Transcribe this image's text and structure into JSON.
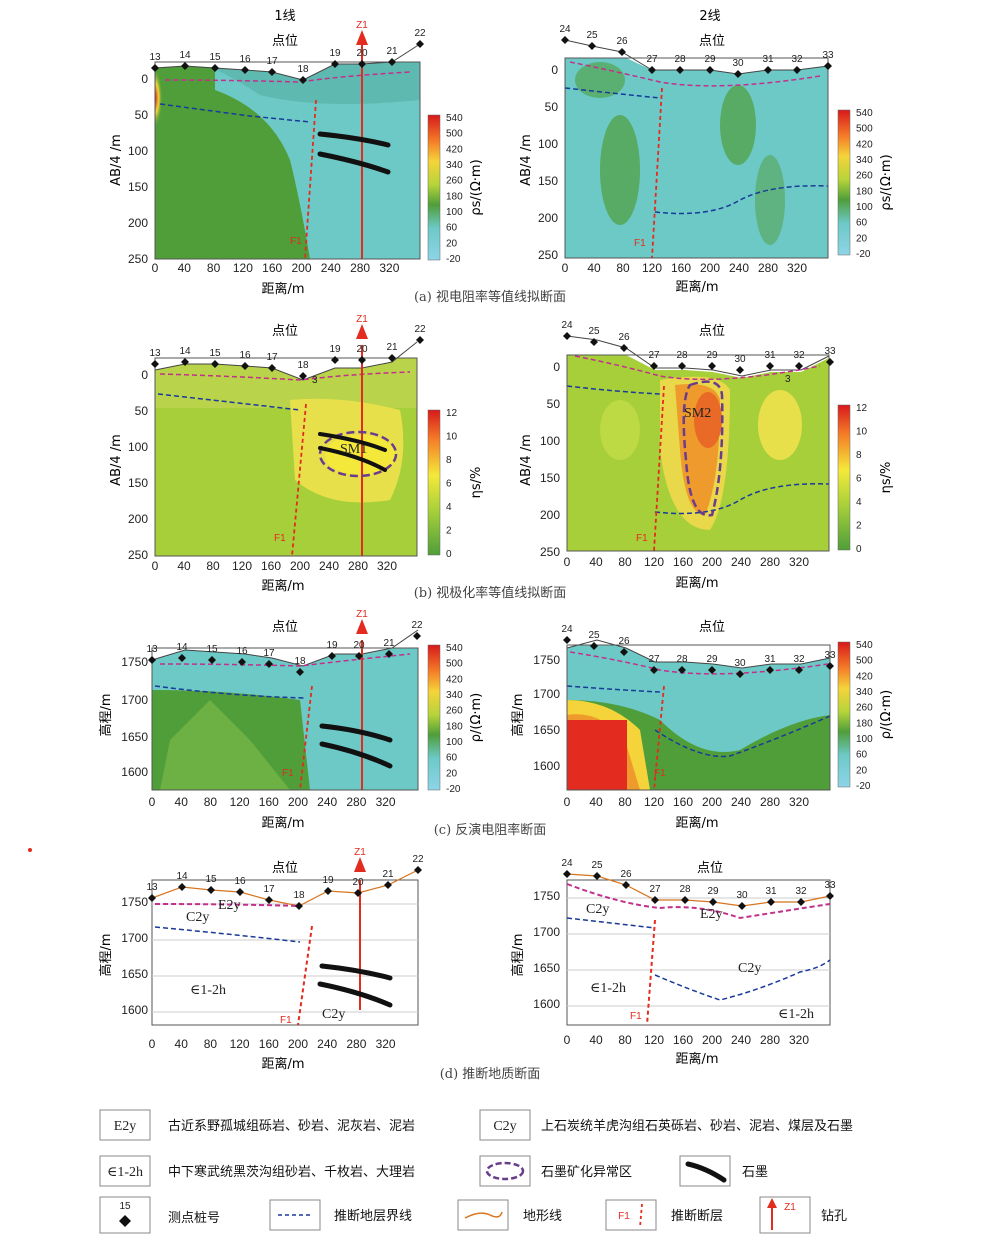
{
  "line_titles": [
    "1线",
    "2线"
  ],
  "point_label": "点位",
  "distance_label": "距离/m",
  "depth_label": "AB/4 /m",
  "elev_label": "高程/m",
  "z1": "Z1",
  "f1": "F1",
  "x_ticks": [
    "0",
    "40",
    "80",
    "120",
    "160",
    "200",
    "240",
    "280",
    "320"
  ],
  "line1_stations": [
    "13",
    "14",
    "15",
    "16",
    "17",
    "18",
    "19",
    "20",
    "21",
    "22"
  ],
  "line2_stations": [
    "24",
    "25",
    "26",
    "27",
    "28",
    "29",
    "30",
    "31",
    "32",
    "33"
  ],
  "depth_ticks": [
    "0",
    "50",
    "100",
    "150",
    "200",
    "250"
  ],
  "elev_ticks": [
    "1750",
    "1700",
    "1650",
    "1600"
  ],
  "rho_colorbar": {
    "label": "ρs/(Ω·m)",
    "ticks": [
      "540",
      "500",
      "420",
      "340",
      "260",
      "180",
      "100",
      "60",
      "20",
      "-20"
    ]
  },
  "eta_colorbar": {
    "label": "ηs/%",
    "ticks": [
      "12",
      "10",
      "8",
      "6",
      "4",
      "2",
      "0"
    ]
  },
  "rho_inv_colorbar": {
    "label": "ρ/(Ω·m)",
    "ticks": [
      "540",
      "500",
      "420",
      "340",
      "260",
      "180",
      "100",
      "60",
      "20",
      "-20"
    ]
  },
  "captions": {
    "a": "(a) 视电阻率等值线拟断面",
    "b": "(b) 视极化率等值线拟断面",
    "c": "(c) 反演电阻率断面",
    "d": "(d) 推断地质断面"
  },
  "anomalies": [
    "SM1",
    "SM2"
  ],
  "contour_label": "3",
  "geology_labels": {
    "e2y": "E2y",
    "c2y": "C2y",
    "e12h": "∈1-2h"
  },
  "legend": [
    {
      "sym": "E2y",
      "text": "古近系野孤城组砾岩、砂岩、泥灰岩、泥岩"
    },
    {
      "sym": "C2y",
      "text": "上石炭统羊虎沟组石英砾岩、砂岩、泥岩、煤层及石墨"
    },
    {
      "sym": "∈1-2h",
      "text": "中下寒武统黑茨沟组砂岩、千枚岩、大理岩"
    },
    {
      "sym": "ellipse",
      "text": "石墨矿化异常区"
    },
    {
      "sym": "graphite",
      "text": "石墨"
    },
    {
      "sym": "15",
      "text": "测点桩号"
    },
    {
      "sym": "boundary",
      "text": "推断地层界线"
    },
    {
      "sym": "terrain",
      "text": "地形线"
    },
    {
      "sym": "F1",
      "text": "推断断层"
    },
    {
      "sym": "Z1",
      "text": "钻孔"
    }
  ],
  "colors": {
    "water": "#6cc9c6",
    "green": "#4f9e3a",
    "yellow": "#f4e93a",
    "orange": "#ef9a2c",
    "red": "#e32b1f",
    "fault": "#e32b1f",
    "boundary": "#1a3a9a",
    "anomaly": "#6a3c8c",
    "terrain": "#d8741f"
  }
}
